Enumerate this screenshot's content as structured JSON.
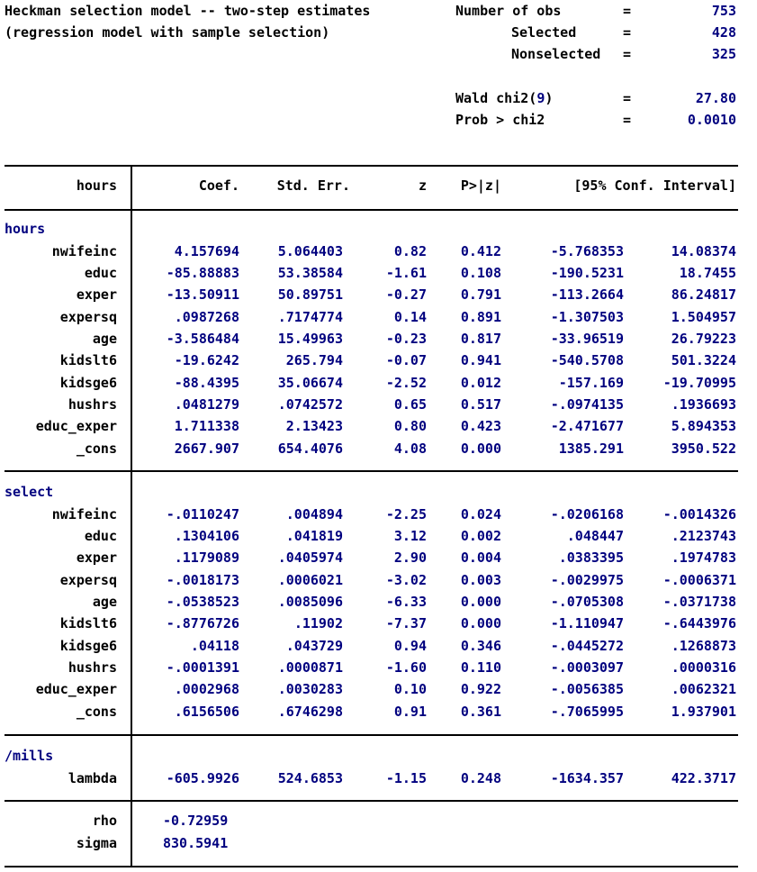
{
  "header": {
    "title_line1": "Heckman selection model -- two-step estimates",
    "title_line2": "(regression model with sample selection)",
    "stats": [
      {
        "label": "Number of obs",
        "eq": "=",
        "value": "753"
      },
      {
        "label": "Selected",
        "eq": "=",
        "value": "428"
      },
      {
        "label": "Nonselected",
        "eq": "=",
        "value": "325"
      },
      {
        "label_prefix": "Wald chi2(",
        "label_df": "9",
        "label_suffix": ")",
        "eq": "=",
        "value": "27.80"
      },
      {
        "label": "Prob > chi2",
        "eq": "=",
        "value": "0.0010"
      }
    ]
  },
  "table": {
    "headers": [
      "hours",
      "Coef.",
      "Std. Err.",
      "z",
      "P>|z|",
      "[95% Conf. Interval]"
    ],
    "sections": [
      {
        "name": "hours",
        "rows": [
          [
            "nwifeinc",
            "4.157694",
            "5.064403",
            "0.82",
            "0.412",
            "-5.768353",
            "14.08374"
          ],
          [
            "educ",
            "-85.88883",
            "53.38584",
            "-1.61",
            "0.108",
            "-190.5231",
            "18.7455"
          ],
          [
            "exper",
            "-13.50911",
            "50.89751",
            "-0.27",
            "0.791",
            "-113.2664",
            "86.24817"
          ],
          [
            "expersq",
            ".0987268",
            ".7174774",
            "0.14",
            "0.891",
            "-1.307503",
            "1.504957"
          ],
          [
            "age",
            "-3.586484",
            "15.49963",
            "-0.23",
            "0.817",
            "-33.96519",
            "26.79223"
          ],
          [
            "kidslt6",
            "-19.6242",
            "265.794",
            "-0.07",
            "0.941",
            "-540.5708",
            "501.3224"
          ],
          [
            "kidsge6",
            "-88.4395",
            "35.06674",
            "-2.52",
            "0.012",
            "-157.169",
            "-19.70995"
          ],
          [
            "hushrs",
            ".0481279",
            ".0742572",
            "0.65",
            "0.517",
            "-.0974135",
            ".1936693"
          ],
          [
            "educ_exper",
            "1.711338",
            "2.13423",
            "0.80",
            "0.423",
            "-2.471677",
            "5.894353"
          ],
          [
            "_cons",
            "2667.907",
            "654.4076",
            "4.08",
            "0.000",
            "1385.291",
            "3950.522"
          ]
        ]
      },
      {
        "name": "select",
        "rows": [
          [
            "nwifeinc",
            "-.0110247",
            ".004894",
            "-2.25",
            "0.024",
            "-.0206168",
            "-.0014326"
          ],
          [
            "educ",
            ".1304106",
            ".041819",
            "3.12",
            "0.002",
            ".048447",
            ".2123743"
          ],
          [
            "exper",
            ".1179089",
            ".0405974",
            "2.90",
            "0.004",
            ".0383395",
            ".1974783"
          ],
          [
            "expersq",
            "-.0018173",
            ".0006021",
            "-3.02",
            "0.003",
            "-.0029975",
            "-.0006371"
          ],
          [
            "age",
            "-.0538523",
            ".0085096",
            "-6.33",
            "0.000",
            "-.0705308",
            "-.0371738"
          ],
          [
            "kidslt6",
            "-.8776726",
            ".11902",
            "-7.37",
            "0.000",
            "-1.110947",
            "-.6443976"
          ],
          [
            "kidsge6",
            ".04118",
            ".043729",
            "0.94",
            "0.346",
            "-.0445272",
            ".1268873"
          ],
          [
            "hushrs",
            "-.0001391",
            ".0000871",
            "-1.60",
            "0.110",
            "-.0003097",
            ".0000316"
          ],
          [
            "educ_exper",
            ".0002968",
            ".0030283",
            "0.10",
            "0.922",
            "-.0056385",
            ".0062321"
          ],
          [
            "_cons",
            ".6156506",
            ".6746298",
            "0.91",
            "0.361",
            "-.7065995",
            "1.937901"
          ]
        ]
      },
      {
        "name": "/mills",
        "rows": [
          [
            "lambda",
            "-605.9926",
            "524.6853",
            "-1.15",
            "0.248",
            "-1634.357",
            "422.3717"
          ]
        ]
      }
    ],
    "footer_rows": [
      [
        "rho",
        "-0.72959"
      ],
      [
        "sigma",
        "830.5941"
      ]
    ]
  }
}
